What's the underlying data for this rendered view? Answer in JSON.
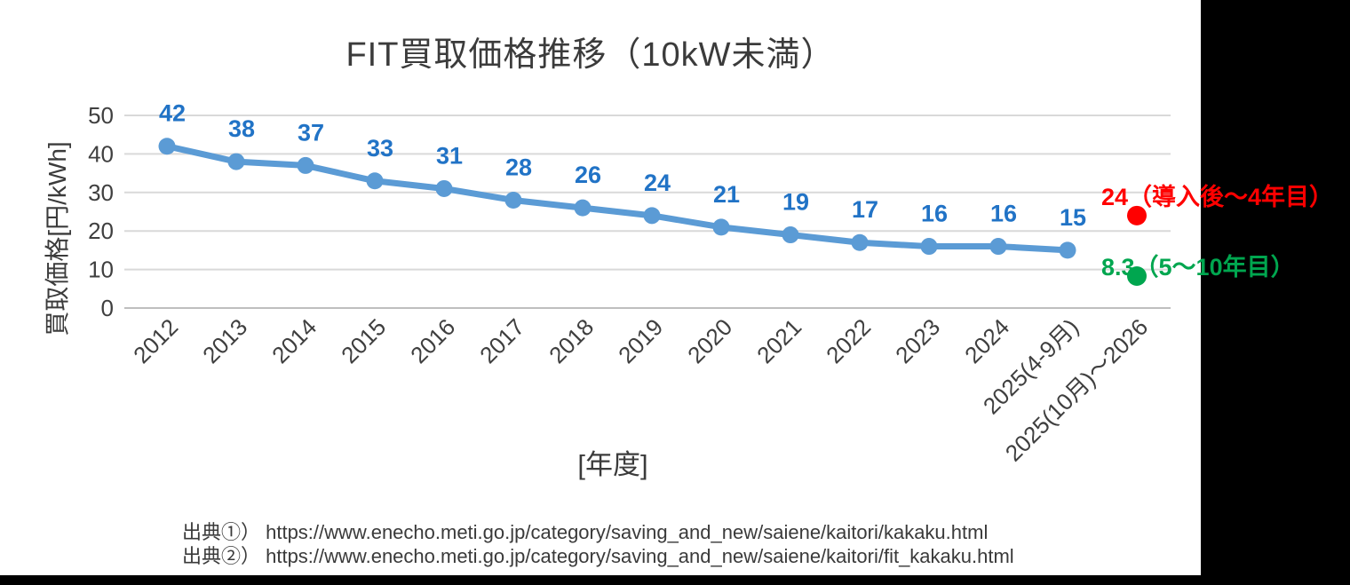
{
  "chart_data": {
    "type": "line",
    "title": "FIT買取価格推移（10kW未満）",
    "xlabel": "[年度]",
    "ylabel": "買取価格[円/kWh]",
    "ylim": [
      0,
      50
    ],
    "yticks": [
      0,
      10,
      20,
      30,
      40,
      50
    ],
    "grid": true,
    "legend": "none",
    "categories": [
      "2012",
      "2013",
      "2014",
      "2015",
      "2016",
      "2017",
      "2018",
      "2019",
      "2020",
      "2021",
      "2022",
      "2023",
      "2024",
      "2025(4-9月)",
      "2025(10月)〜2026"
    ],
    "series": [
      {
        "name": "FIT買取価格",
        "color": "#5b9bd5",
        "label_color": "#2173c6",
        "values": [
          42,
          38,
          37,
          33,
          31,
          28,
          26,
          24,
          21,
          19,
          17,
          16,
          16,
          15
        ]
      }
    ],
    "annotations": [
      {
        "label": "24（導入後〜4年目）",
        "value": 24,
        "category_index": 14,
        "color": "#ff0000"
      },
      {
        "label": "8.3（5〜10年目）",
        "value": 8.3,
        "category_index": 14,
        "color": "#00a64f"
      }
    ]
  },
  "sources": {
    "line1": "出典①） https://www.enecho.meti.go.jp/category/saving_and_new/saiene/kaitori/kakaku.html",
    "line2": "出典②） https://www.enecho.meti.go.jp/category/saving_and_new/saiene/kaitori/fit_kakaku.html"
  }
}
